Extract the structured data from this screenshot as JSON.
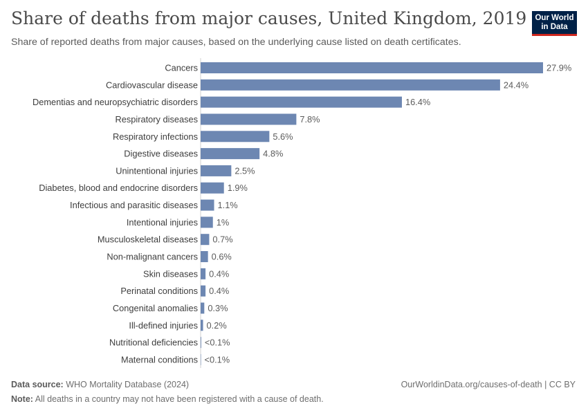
{
  "header": {
    "title": "Share of deaths from major causes, United Kingdom, 2019",
    "subtitle": "Share of reported deaths from major causes, based on the underlying cause listed on death certificates."
  },
  "logo": {
    "line1": "Our World",
    "line2": "in Data",
    "bg_color": "#002147",
    "accent_color": "#ce261e"
  },
  "footer": {
    "source_label": "Data source:",
    "source_text": "WHO Mortality Database (2024)",
    "note_label": "Note:",
    "note_text": "All deaths in a country may not have been registered with a cause of death.",
    "url": "OurWorldinData.org/causes-of-death | CC BY"
  },
  "chart_data": {
    "type": "bar",
    "orientation": "horizontal",
    "bar_color": "#6d87b2",
    "categories": [
      "Cancers",
      "Cardiovascular disease",
      "Dementias and neuropsychiatric disorders",
      "Respiratory diseases",
      "Respiratory infections",
      "Digestive diseases",
      "Unintentional injuries",
      "Diabetes, blood and endocrine disorders",
      "Infectious and parasitic diseases",
      "Intentional injuries",
      "Musculoskeletal diseases",
      "Non-malignant cancers",
      "Skin diseases",
      "Perinatal conditions",
      "Congenital anomalies",
      "Ill-defined injuries",
      "Nutritional deficiencies",
      "Maternal conditions"
    ],
    "values": [
      27.9,
      24.4,
      16.4,
      7.8,
      5.6,
      4.8,
      2.5,
      1.9,
      1.1,
      1.0,
      0.7,
      0.6,
      0.4,
      0.4,
      0.3,
      0.2,
      0.05,
      0.03
    ],
    "value_labels": [
      "27.9%",
      "24.4%",
      "16.4%",
      "7.8%",
      "5.6%",
      "4.8%",
      "2.5%",
      "1.9%",
      "1.1%",
      "1%",
      "0.7%",
      "0.6%",
      "0.4%",
      "0.4%",
      "0.3%",
      "0.2%",
      "<0.1%",
      "<0.1%"
    ],
    "unit": "%",
    "xlim": [
      0,
      27.9
    ],
    "grid": false,
    "legend": "none"
  }
}
